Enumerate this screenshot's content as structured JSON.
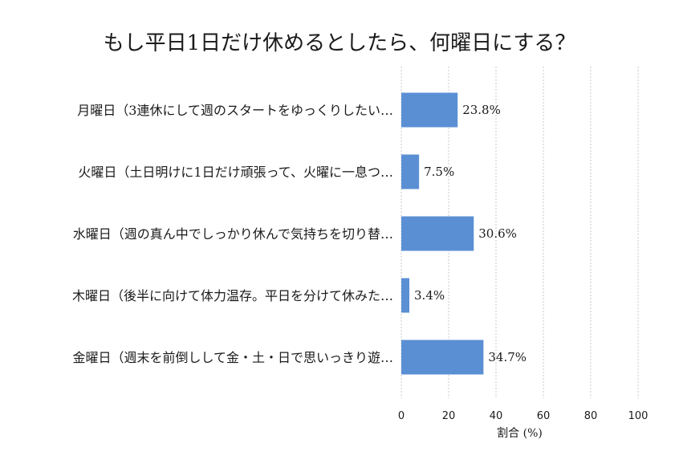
{
  "chart_data": {
    "type": "bar",
    "orientation": "horizontal",
    "title": "もし平日1日だけ休めるとしたら、何曜日にする？",
    "categories": [
      "月曜日（3連休にして週のスタートをゆっくりしたい…",
      "火曜日（土日明けに1日だけ頑張って、火曜に一息つ…",
      "水曜日（週の真ん中でしっかり休んで気持ちを切り替…",
      "木曜日（後半に向けて体力温存。平日を分けて休みた…",
      "金曜日（週末を前倒しして金・土・日で思いっきり遊…"
    ],
    "values": [
      23.8,
      7.5,
      30.6,
      3.4,
      34.7
    ],
    "value_labels": [
      "23.8%",
      "7.5%",
      "30.6%",
      "3.4%",
      "34.7%"
    ],
    "xlabel": "割合 (%)",
    "ylabel": "",
    "xlim": [
      0,
      100
    ],
    "xticks": [
      0,
      20,
      40,
      60,
      80,
      100
    ],
    "bar_color": "#5b8fd4",
    "grid": "vertical dashed",
    "legend": "none"
  }
}
